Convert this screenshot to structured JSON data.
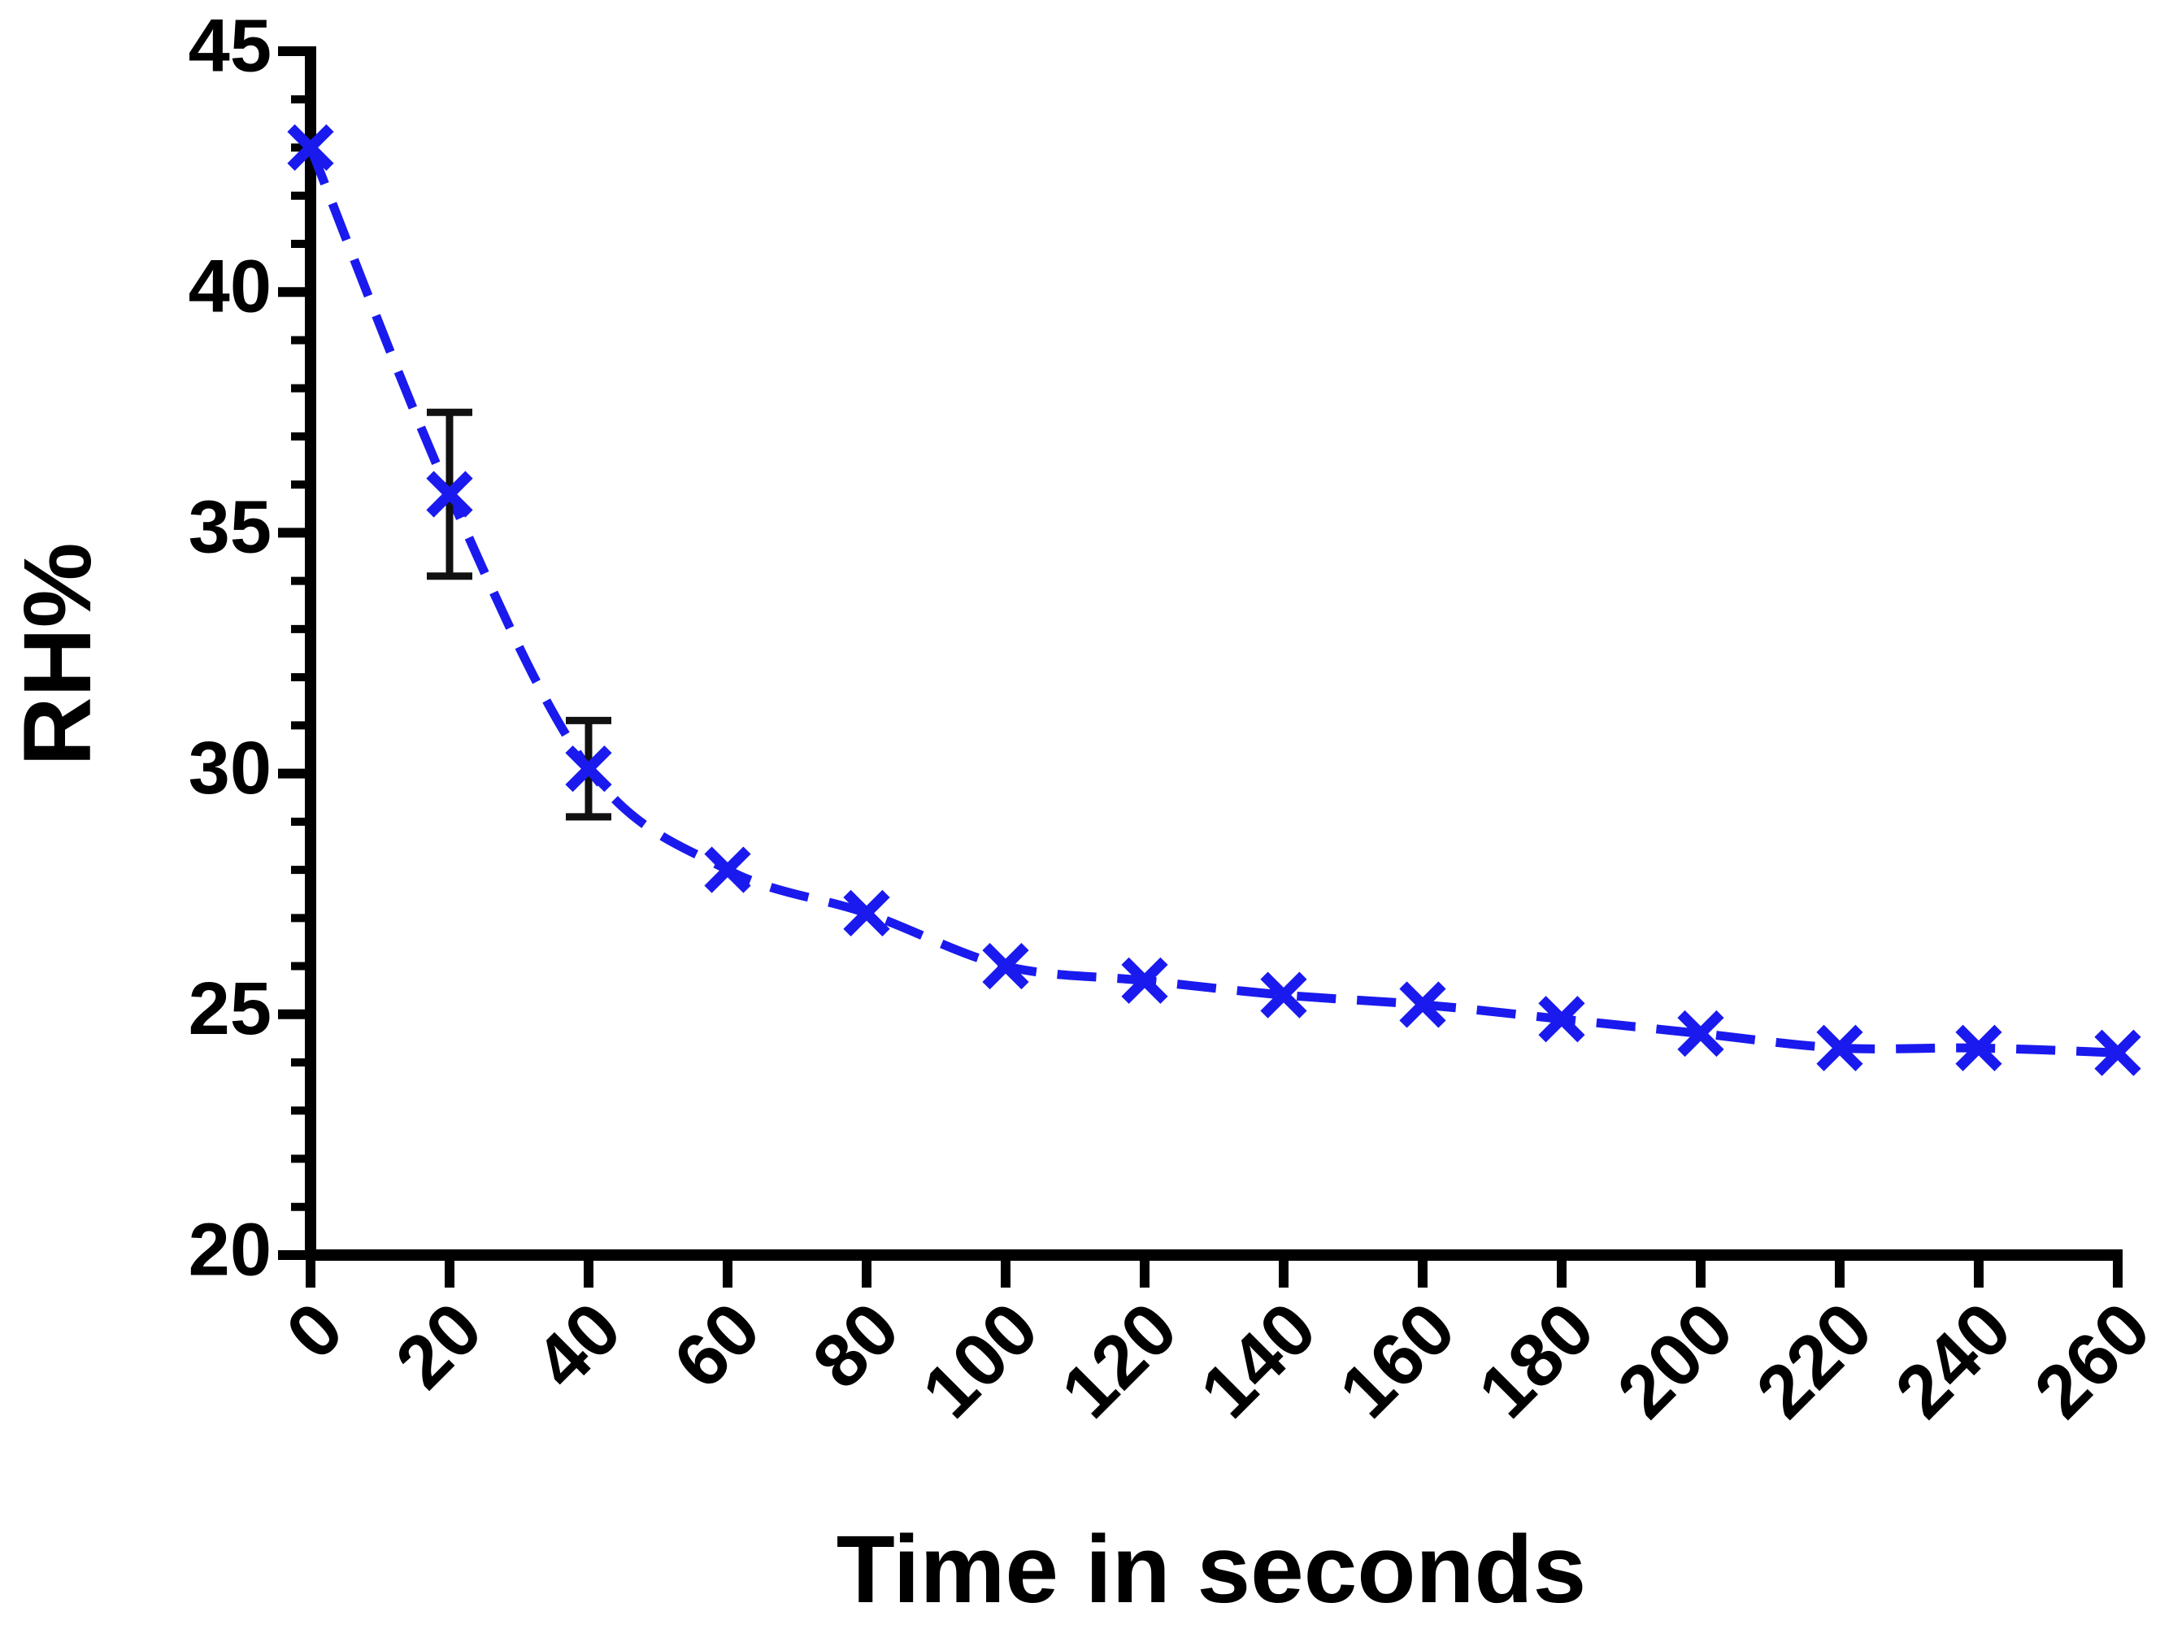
{
  "chart_data": {
    "type": "line",
    "x_label": "Time in seconds",
    "y_label": "RH%",
    "x": [
      0,
      20,
      40,
      60,
      80,
      100,
      120,
      140,
      160,
      180,
      200,
      220,
      240,
      260
    ],
    "series": [
      {
        "name": "RH%",
        "color": "#1a1aee",
        "values": [
          43,
          35.8,
          30.1,
          28,
          27.1,
          26,
          25.7,
          25.4,
          25.2,
          24.9,
          24.6,
          24.3,
          24.3,
          24.2
        ],
        "errors": [
          null,
          1.7,
          1.0,
          null,
          null,
          null,
          null,
          null,
          null,
          null,
          null,
          null,
          null,
          null
        ]
      }
    ],
    "xlim": [
      0,
      260
    ],
    "xticks": [
      0,
      20,
      40,
      60,
      80,
      100,
      120,
      140,
      160,
      180,
      200,
      220,
      240,
      260
    ],
    "ylim": [
      20,
      45
    ],
    "yticks": [
      20,
      25,
      30,
      35,
      40,
      45
    ],
    "yminorticks": [
      21,
      22,
      23,
      24,
      26,
      27,
      28,
      29,
      31,
      32,
      33,
      34,
      36,
      37,
      38,
      39,
      41,
      42,
      43,
      44
    ]
  }
}
